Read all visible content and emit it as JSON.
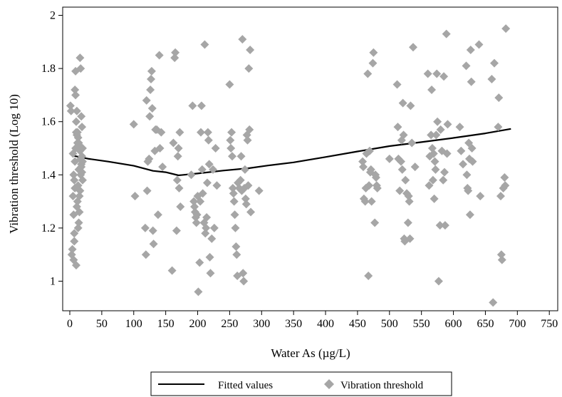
{
  "chart_data": {
    "type": "scatter",
    "title": "",
    "xlabel": "Water As (µg/L)",
    "ylabel": "Vibration threshold (Log 10)",
    "xlim": [
      0,
      750
    ],
    "ylim": [
      0.9,
      2.02
    ],
    "xticks": [
      0,
      50,
      100,
      150,
      200,
      250,
      300,
      350,
      400,
      450,
      500,
      550,
      600,
      650,
      700,
      750
    ],
    "yticks": [
      1,
      1.2,
      1.4,
      1.6,
      1.8,
      2
    ],
    "ytick_labels": [
      "1",
      "1.2",
      "1.4",
      "1.6",
      "1.8",
      "2"
    ],
    "grid": false,
    "legend_position": "bottom",
    "legend": [
      "Fitted values",
      "Vibration threshold"
    ],
    "colors": {
      "fitted": "#000000",
      "points": "#a6a6a6"
    },
    "series": [
      {
        "name": "Fitted values",
        "type": "line",
        "points": [
          [
            5,
            1.472
          ],
          [
            30,
            1.46
          ],
          [
            60,
            1.45
          ],
          [
            100,
            1.434
          ],
          [
            130,
            1.415
          ],
          [
            150,
            1.41
          ],
          [
            170,
            1.398
          ],
          [
            200,
            1.405
          ],
          [
            240,
            1.416
          ],
          [
            280,
            1.425
          ],
          [
            310,
            1.435
          ],
          [
            350,
            1.447
          ],
          [
            400,
            1.467
          ],
          [
            450,
            1.488
          ],
          [
            500,
            1.508
          ],
          [
            550,
            1.523
          ],
          [
            600,
            1.539
          ],
          [
            650,
            1.556
          ],
          [
            690,
            1.573
          ]
        ]
      },
      {
        "name": "Vibration threshold",
        "type": "scatter",
        "marker": "diamond",
        "points": [
          [
            1,
            1.66
          ],
          [
            2,
            1.64
          ],
          [
            3,
            1.1
          ],
          [
            4,
            1.12
          ],
          [
            5,
            1.48
          ],
          [
            6,
            1.4
          ],
          [
            7,
            1.38
          ],
          [
            8,
            1.35
          ],
          [
            9,
            1.79
          ],
          [
            10,
            1.06
          ],
          [
            11,
            1.55
          ],
          [
            12,
            1.52
          ],
          [
            13,
            1.36
          ],
          [
            14,
            1.42
          ],
          [
            15,
            1.32
          ],
          [
            16,
            1.84
          ],
          [
            17,
            1.8
          ],
          [
            18,
            1.62
          ],
          [
            19,
            1.58
          ],
          [
            20,
            1.45
          ],
          [
            5,
            1.32
          ],
          [
            6,
            1.25
          ],
          [
            7,
            1.18
          ],
          [
            8,
            1.45
          ],
          [
            9,
            1.5
          ],
          [
            10,
            1.56
          ],
          [
            11,
            1.28
          ],
          [
            12,
            1.3
          ],
          [
            13,
            1.2
          ],
          [
            14,
            1.22
          ],
          [
            15,
            1.26
          ],
          [
            16,
            1.34
          ],
          [
            17,
            1.4
          ],
          [
            18,
            1.44
          ],
          [
            19,
            1.47
          ],
          [
            20,
            1.5
          ],
          [
            6,
            1.08
          ],
          [
            7,
            1.15
          ],
          [
            8,
            1.72
          ],
          [
            9,
            1.7
          ],
          [
            10,
            1.6
          ],
          [
            11,
            1.64
          ],
          [
            12,
            1.56
          ],
          [
            13,
            1.54
          ],
          [
            14,
            1.52
          ],
          [
            15,
            1.51
          ],
          [
            16,
            1.49
          ],
          [
            17,
            1.46
          ],
          [
            18,
            1.43
          ],
          [
            19,
            1.41
          ],
          [
            20,
            1.38
          ],
          [
            100,
            1.59
          ],
          [
            102,
            1.32
          ],
          [
            118,
            1.2
          ],
          [
            119,
            1.1
          ],
          [
            120,
            1.68
          ],
          [
            121,
            1.34
          ],
          [
            122,
            1.45
          ],
          [
            124,
            1.46
          ],
          [
            125,
            1.62
          ],
          [
            126,
            1.72
          ],
          [
            127,
            1.76
          ],
          [
            128,
            1.79
          ],
          [
            129,
            1.65
          ],
          [
            130,
            1.19
          ],
          [
            131,
            1.14
          ],
          [
            133,
            1.49
          ],
          [
            134,
            1.57
          ],
          [
            136,
            1.57
          ],
          [
            138,
            1.25
          ],
          [
            140,
            1.85
          ],
          [
            141,
            1.5
          ],
          [
            143,
            1.56
          ],
          [
            145,
            1.43
          ],
          [
            160,
            1.04
          ],
          [
            162,
            1.52
          ],
          [
            164,
            1.84
          ],
          [
            165,
            1.86
          ],
          [
            167,
            1.19
          ],
          [
            168,
            1.38
          ],
          [
            169,
            1.47
          ],
          [
            170,
            1.5
          ],
          [
            171,
            1.35
          ],
          [
            172,
            1.56
          ],
          [
            173,
            1.28
          ],
          [
            190,
            1.4
          ],
          [
            192,
            1.66
          ],
          [
            194,
            1.3
          ],
          [
            195,
            1.28
          ],
          [
            196,
            1.26
          ],
          [
            197,
            1.24
          ],
          [
            198,
            1.22
          ],
          [
            199,
            1.25
          ],
          [
            200,
            1.32
          ],
          [
            201,
            0.96
          ],
          [
            203,
            1.07
          ],
          [
            204,
            1.3
          ],
          [
            205,
            1.56
          ],
          [
            206,
            1.66
          ],
          [
            207,
            1.42
          ],
          [
            208,
            1.33
          ],
          [
            210,
            1.22
          ],
          [
            211,
            1.89
          ],
          [
            212,
            1.18
          ],
          [
            213,
            1.2
          ],
          [
            214,
            1.24
          ],
          [
            215,
            1.37
          ],
          [
            216,
            1.56
          ],
          [
            217,
            1.53
          ],
          [
            218,
            1.44
          ],
          [
            219,
            1.09
          ],
          [
            220,
            1.03
          ],
          [
            222,
            1.16
          ],
          [
            224,
            1.42
          ],
          [
            226,
            1.2
          ],
          [
            228,
            1.5
          ],
          [
            230,
            1.36
          ],
          [
            250,
            1.74
          ],
          [
            251,
            1.53
          ],
          [
            252,
            1.5
          ],
          [
            253,
            1.56
          ],
          [
            254,
            1.47
          ],
          [
            255,
            1.35
          ],
          [
            256,
            1.33
          ],
          [
            257,
            1.3
          ],
          [
            258,
            1.25
          ],
          [
            259,
            1.2
          ],
          [
            260,
            1.13
          ],
          [
            261,
            1.1
          ],
          [
            262,
            1.02
          ],
          [
            263,
            1.37
          ],
          [
            265,
            1.35
          ],
          [
            267,
            1.38
          ],
          [
            268,
            1.47
          ],
          [
            269,
            1.34
          ],
          [
            270,
            1.91
          ],
          [
            271,
            1.03
          ],
          [
            272,
            1.0
          ],
          [
            273,
            1.35
          ],
          [
            274,
            1.42
          ],
          [
            275,
            1.31
          ],
          [
            276,
            1.29
          ],
          [
            277,
            1.55
          ],
          [
            278,
            1.53
          ],
          [
            279,
            1.36
          ],
          [
            280,
            1.8
          ],
          [
            281,
            1.57
          ],
          [
            282,
            1.87
          ],
          [
            283,
            1.26
          ],
          [
            296,
            1.34
          ],
          [
            458,
            1.45
          ],
          [
            459,
            1.43
          ],
          [
            460,
            1.31
          ],
          [
            462,
            1.3
          ],
          [
            463,
            1.35
          ],
          [
            464,
            1.48
          ],
          [
            466,
            1.78
          ],
          [
            467,
            1.02
          ],
          [
            468,
            1.36
          ],
          [
            469,
            1.49
          ],
          [
            470,
            1.41
          ],
          [
            471,
            1.42
          ],
          [
            472,
            1.3
          ],
          [
            474,
            1.82
          ],
          [
            475,
            1.86
          ],
          [
            477,
            1.22
          ],
          [
            478,
            1.4
          ],
          [
            479,
            1.39
          ],
          [
            480,
            1.36
          ],
          [
            481,
            1.35
          ],
          [
            500,
            1.46
          ],
          [
            512,
            1.74
          ],
          [
            513,
            1.58
          ],
          [
            514,
            1.46
          ],
          [
            516,
            1.34
          ],
          [
            518,
            1.45
          ],
          [
            519,
            1.53
          ],
          [
            520,
            1.42
          ],
          [
            521,
            1.67
          ],
          [
            522,
            1.55
          ],
          [
            523,
            1.16
          ],
          [
            524,
            1.15
          ],
          [
            525,
            1.38
          ],
          [
            527,
            1.33
          ],
          [
            529,
            1.22
          ],
          [
            530,
            1.32
          ],
          [
            531,
            1.3
          ],
          [
            532,
            1.16
          ],
          [
            533,
            1.66
          ],
          [
            535,
            1.52
          ],
          [
            537,
            1.88
          ],
          [
            540,
            1.43
          ],
          [
            560,
            1.78
          ],
          [
            562,
            1.36
          ],
          [
            563,
            1.47
          ],
          [
            565,
            1.55
          ],
          [
            566,
            1.72
          ],
          [
            567,
            1.5
          ],
          [
            568,
            1.38
          ],
          [
            569,
            1.48
          ],
          [
            570,
            1.31
          ],
          [
            571,
            1.45
          ],
          [
            572,
            1.42
          ],
          [
            573,
            1.55
          ],
          [
            574,
            1.78
          ],
          [
            575,
            1.6
          ],
          [
            577,
            1.0
          ],
          [
            579,
            1.21
          ],
          [
            580,
            1.57
          ],
          [
            582,
            1.49
          ],
          [
            584,
            1.38
          ],
          [
            585,
            1.77
          ],
          [
            586,
            1.41
          ],
          [
            587,
            1.21
          ],
          [
            589,
            1.93
          ],
          [
            590,
            1.48
          ],
          [
            591,
            1.59
          ],
          [
            610,
            1.58
          ],
          [
            612,
            1.49
          ],
          [
            615,
            1.44
          ],
          [
            620,
            1.81
          ],
          [
            621,
            1.4
          ],
          [
            622,
            1.35
          ],
          [
            623,
            1.34
          ],
          [
            624,
            1.52
          ],
          [
            625,
            1.46
          ],
          [
            626,
            1.25
          ],
          [
            627,
            1.87
          ],
          [
            628,
            1.75
          ],
          [
            629,
            1.5
          ],
          [
            630,
            1.45
          ],
          [
            640,
            1.89
          ],
          [
            642,
            1.32
          ],
          [
            660,
            1.76
          ],
          [
            662,
            0.92
          ],
          [
            664,
            1.82
          ],
          [
            670,
            1.58
          ],
          [
            671,
            1.69
          ],
          [
            674,
            1.32
          ],
          [
            675,
            1.1
          ],
          [
            676,
            1.08
          ],
          [
            678,
            1.35
          ],
          [
            680,
            1.39
          ],
          [
            681,
            1.36
          ],
          [
            682,
            1.95
          ]
        ]
      }
    ]
  }
}
